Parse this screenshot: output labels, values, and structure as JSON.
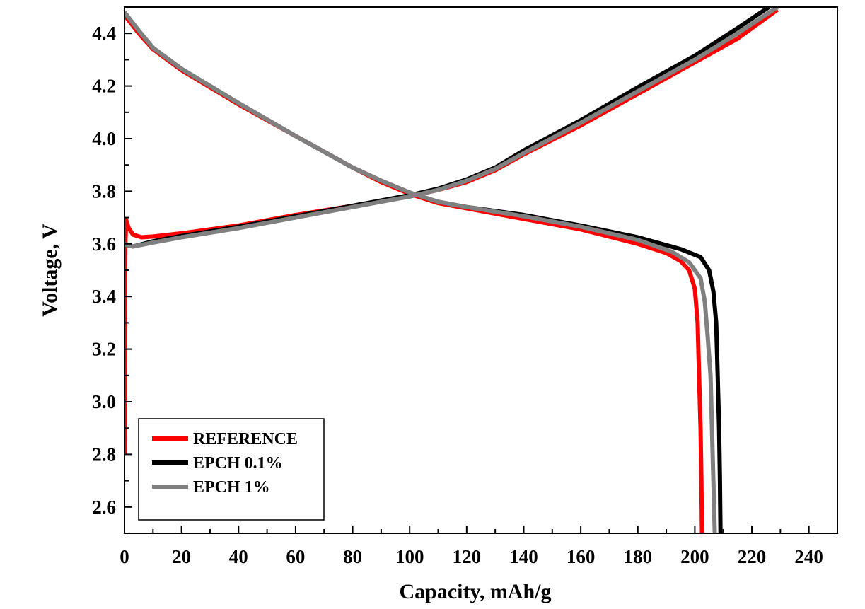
{
  "chart_data": {
    "type": "line",
    "title": "",
    "xlabel": "Capacity, mAh/g",
    "ylabel": "Voltage, V",
    "xlim": [
      0,
      250
    ],
    "ylim": [
      2.5,
      4.5
    ],
    "xticks": [
      0,
      20,
      40,
      60,
      80,
      100,
      120,
      140,
      160,
      180,
      200,
      220,
      240
    ],
    "yticks": [
      2.6,
      2.8,
      3.0,
      3.2,
      3.4,
      3.6,
      3.8,
      4.0,
      4.2,
      4.4
    ],
    "xtick_labels": [
      "0",
      "20",
      "40",
      "60",
      "80",
      "100",
      "120",
      "140",
      "160",
      "180",
      "200",
      "220",
      "240"
    ],
    "ytick_labels": [
      "2.6",
      "2.8",
      "3.0",
      "3.2",
      "3.4",
      "3.6",
      "3.8",
      "4.0",
      "4.2",
      "4.4"
    ],
    "grid": false,
    "legend_position": "bottom-left",
    "series": [
      {
        "name": "REFERENCE",
        "color": "#ff0000",
        "charge": [
          [
            0,
            2.8
          ],
          [
            0.3,
            3.6
          ],
          [
            0.6,
            3.69
          ],
          [
            1.5,
            3.66
          ],
          [
            3,
            3.635
          ],
          [
            6,
            3.625
          ],
          [
            10,
            3.628
          ],
          [
            20,
            3.64
          ],
          [
            40,
            3.67
          ],
          [
            60,
            3.71
          ],
          [
            80,
            3.745
          ],
          [
            100,
            3.78
          ],
          [
            110,
            3.805
          ],
          [
            120,
            3.835
          ],
          [
            130,
            3.88
          ],
          [
            140,
            3.94
          ],
          [
            160,
            4.05
          ],
          [
            180,
            4.17
          ],
          [
            200,
            4.29
          ],
          [
            215,
            4.38
          ],
          [
            229,
            4.49
          ]
        ],
        "discharge": [
          [
            0,
            4.47
          ],
          [
            5,
            4.4
          ],
          [
            10,
            4.34
          ],
          [
            20,
            4.26
          ],
          [
            40,
            4.13
          ],
          [
            60,
            4.01
          ],
          [
            80,
            3.89
          ],
          [
            90,
            3.835
          ],
          [
            100,
            3.79
          ],
          [
            110,
            3.755
          ],
          [
            120,
            3.735
          ],
          [
            140,
            3.695
          ],
          [
            160,
            3.655
          ],
          [
            180,
            3.6
          ],
          [
            190,
            3.565
          ],
          [
            195,
            3.535
          ],
          [
            198,
            3.5
          ],
          [
            200,
            3.43
          ],
          [
            201,
            3.3
          ],
          [
            201.5,
            3.1
          ],
          [
            202,
            2.9
          ],
          [
            202.3,
            2.7
          ],
          [
            202.5,
            2.5
          ]
        ]
      },
      {
        "name": "EPCH 0.1%",
        "color": "#000000",
        "charge": [
          [
            0,
            3.6
          ],
          [
            1,
            3.595
          ],
          [
            3,
            3.59
          ],
          [
            10,
            3.61
          ],
          [
            20,
            3.63
          ],
          [
            40,
            3.665
          ],
          [
            60,
            3.705
          ],
          [
            80,
            3.745
          ],
          [
            100,
            3.785
          ],
          [
            110,
            3.81
          ],
          [
            120,
            3.845
          ],
          [
            130,
            3.89
          ],
          [
            140,
            3.955
          ],
          [
            160,
            4.07
          ],
          [
            180,
            4.195
          ],
          [
            200,
            4.315
          ],
          [
            215,
            4.42
          ],
          [
            226,
            4.5
          ]
        ],
        "discharge": [
          [
            0,
            4.48
          ],
          [
            5,
            4.41
          ],
          [
            10,
            4.345
          ],
          [
            20,
            4.265
          ],
          [
            40,
            4.135
          ],
          [
            60,
            4.01
          ],
          [
            80,
            3.89
          ],
          [
            90,
            3.84
          ],
          [
            100,
            3.795
          ],
          [
            110,
            3.76
          ],
          [
            120,
            3.74
          ],
          [
            140,
            3.71
          ],
          [
            160,
            3.67
          ],
          [
            180,
            3.625
          ],
          [
            195,
            3.58
          ],
          [
            202,
            3.55
          ],
          [
            205,
            3.5
          ],
          [
            206.5,
            3.42
          ],
          [
            207.5,
            3.3
          ],
          [
            208,
            3.1
          ],
          [
            208.5,
            2.9
          ],
          [
            208.8,
            2.7
          ],
          [
            209,
            2.5
          ]
        ]
      },
      {
        "name": "EPCH 1%",
        "color": "#808080",
        "charge": [
          [
            0,
            3.6
          ],
          [
            1,
            3.595
          ],
          [
            3,
            3.59
          ],
          [
            10,
            3.605
          ],
          [
            20,
            3.625
          ],
          [
            40,
            3.66
          ],
          [
            60,
            3.7
          ],
          [
            80,
            3.74
          ],
          [
            100,
            3.78
          ],
          [
            110,
            3.805
          ],
          [
            120,
            3.84
          ],
          [
            130,
            3.885
          ],
          [
            140,
            3.945
          ],
          [
            160,
            4.06
          ],
          [
            180,
            4.18
          ],
          [
            200,
            4.3
          ],
          [
            215,
            4.4
          ],
          [
            229,
            4.5
          ]
        ],
        "discharge": [
          [
            0,
            4.48
          ],
          [
            5,
            4.41
          ],
          [
            10,
            4.345
          ],
          [
            20,
            4.265
          ],
          [
            40,
            4.135
          ],
          [
            60,
            4.01
          ],
          [
            80,
            3.89
          ],
          [
            90,
            3.84
          ],
          [
            100,
            3.795
          ],
          [
            110,
            3.76
          ],
          [
            120,
            3.74
          ],
          [
            140,
            3.705
          ],
          [
            160,
            3.665
          ],
          [
            180,
            3.615
          ],
          [
            192,
            3.57
          ],
          [
            198,
            3.53
          ],
          [
            202,
            3.47
          ],
          [
            203.5,
            3.38
          ],
          [
            204.5,
            3.25
          ],
          [
            205.5,
            3.1
          ],
          [
            206,
            2.9
          ],
          [
            206.5,
            2.7
          ],
          [
            207,
            2.5
          ]
        ]
      }
    ]
  }
}
